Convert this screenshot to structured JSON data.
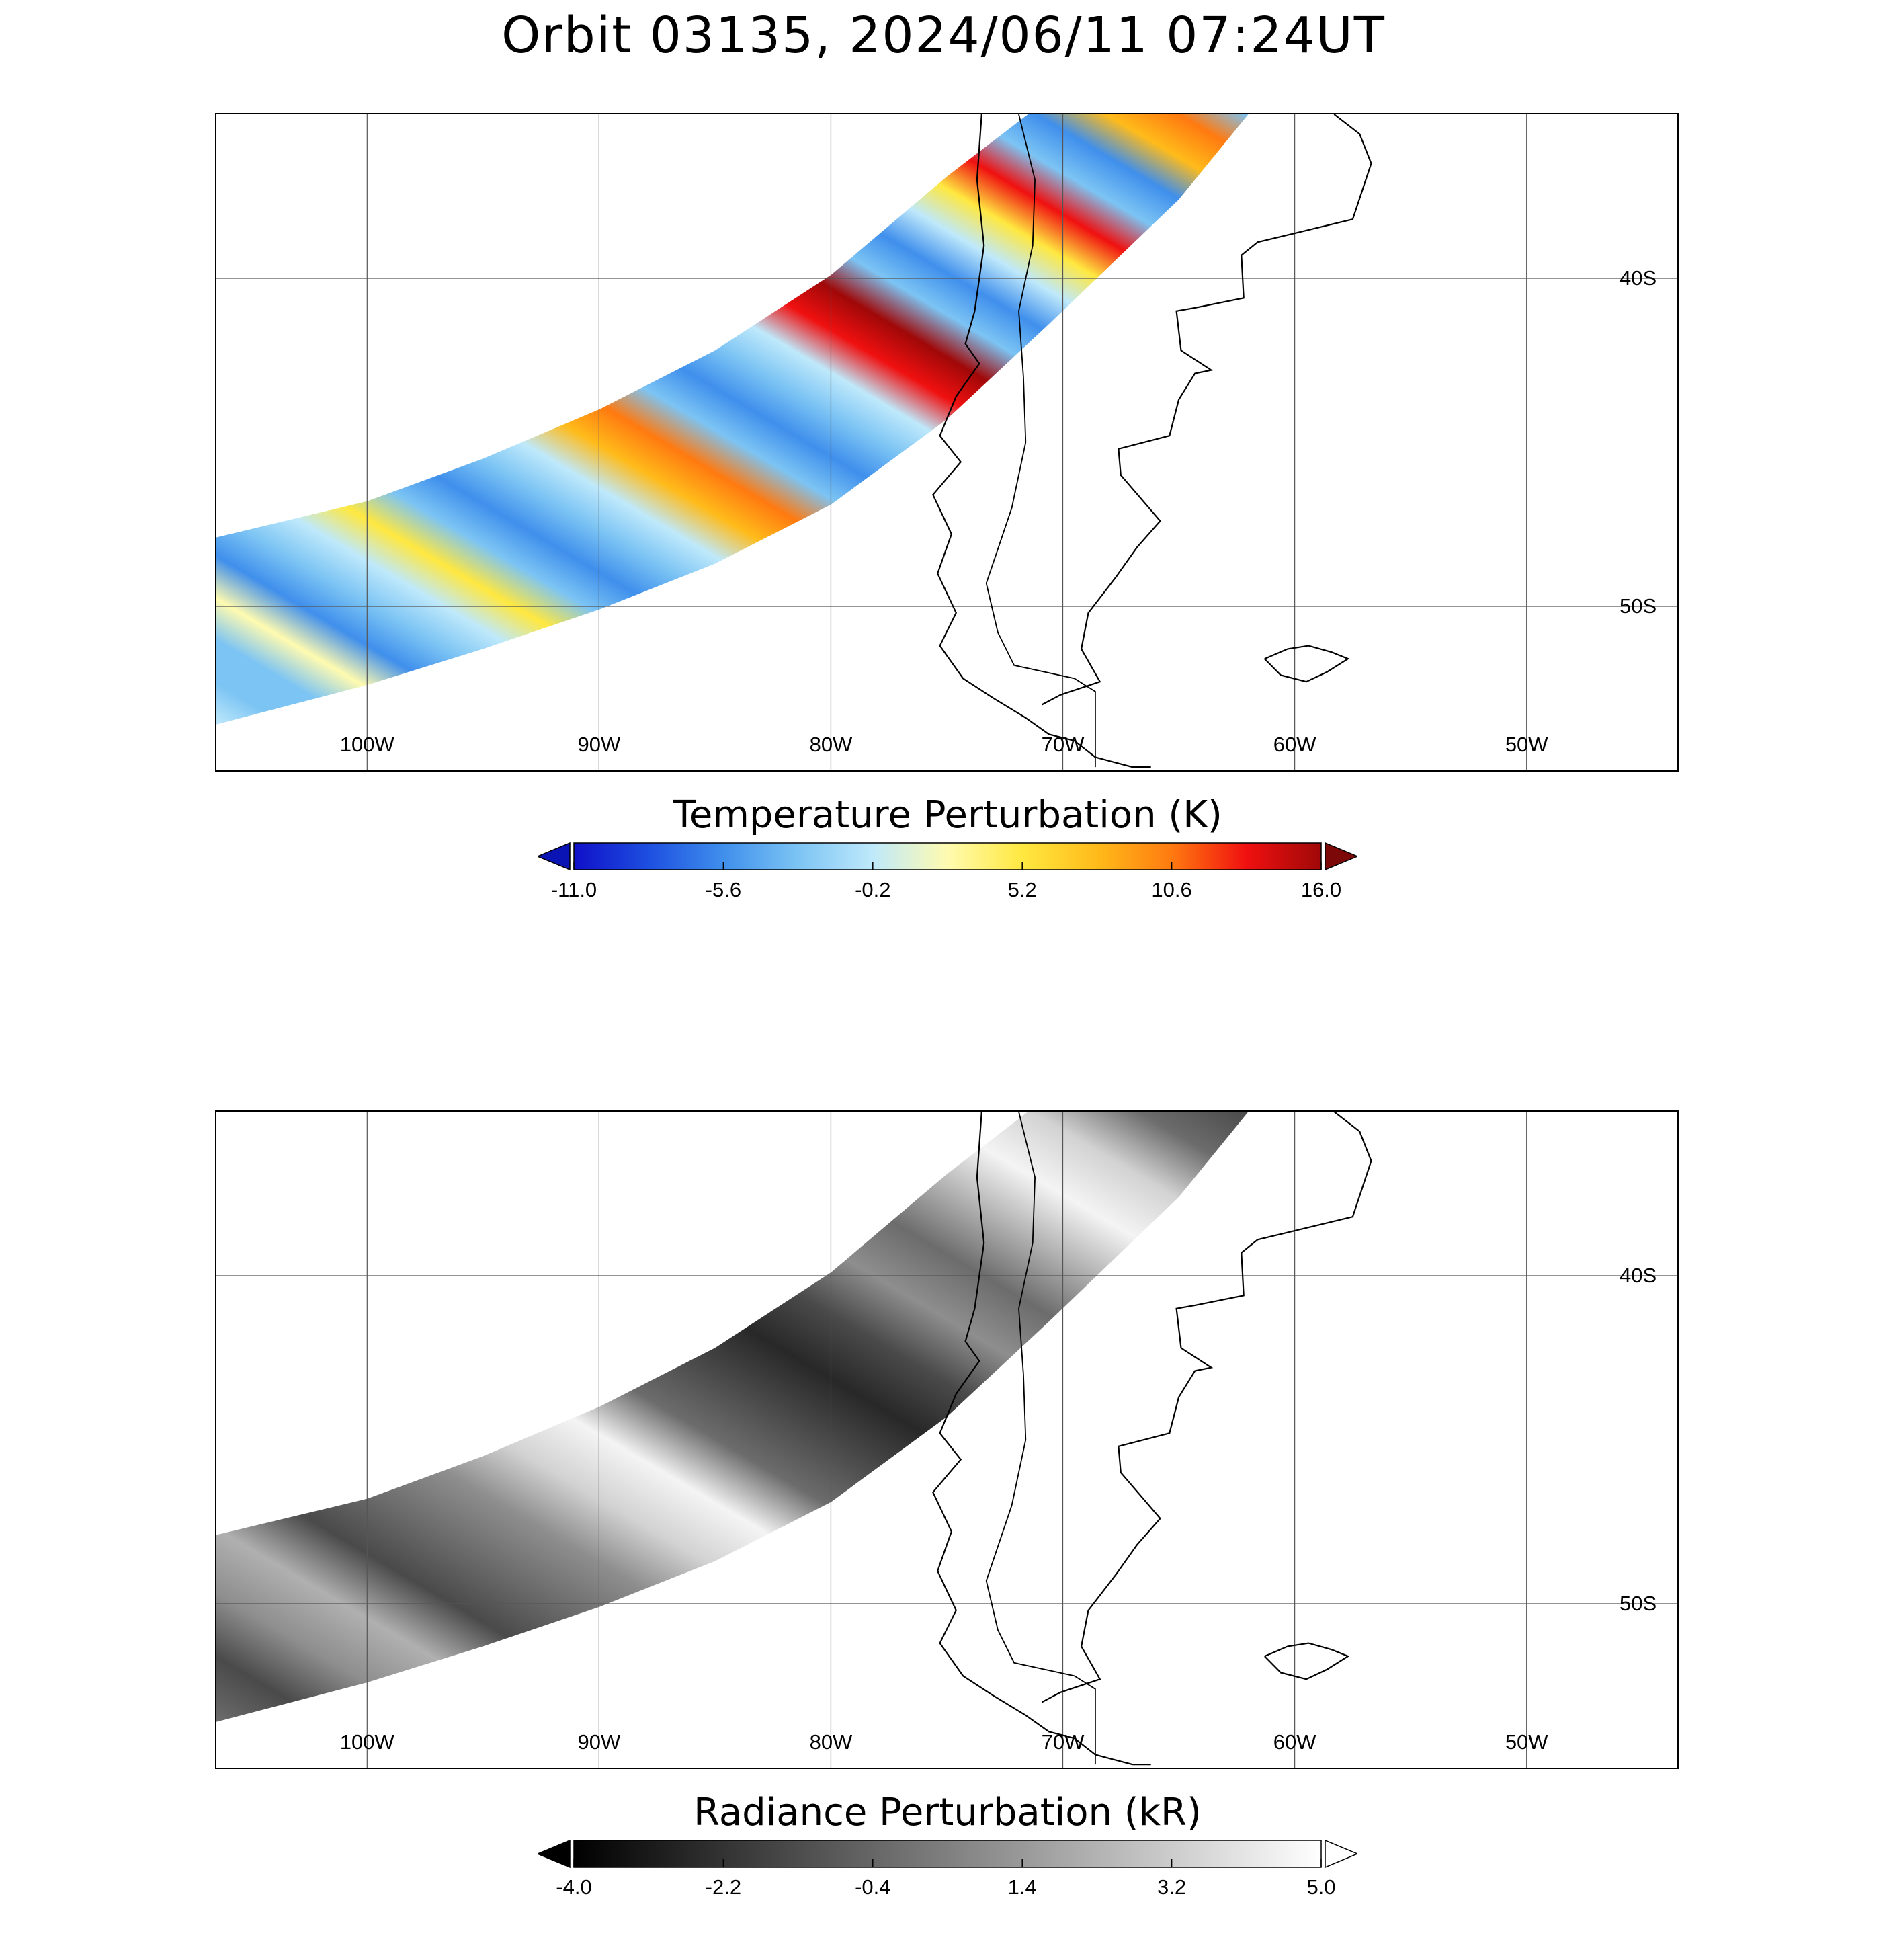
{
  "title": "Orbit 03135, 2024/06/11 07:24UT",
  "map": {
    "lon_range": [
      -106.5,
      -43.5
    ],
    "lat_range": [
      -55,
      -35
    ],
    "lon_grid": [
      -100,
      -90,
      -80,
      -70,
      -60,
      -50
    ],
    "lat_grid": [
      -40,
      -50
    ],
    "lon_labels": [
      "100W",
      "90W",
      "80W",
      "70W",
      "60W",
      "50W"
    ],
    "lat_labels": [
      "40S",
      "50S"
    ],
    "grid": true
  },
  "panels": [
    {
      "id": "temperature",
      "colorbar": {
        "label": "Temperature Perturbation (K)",
        "ticks": [
          "-11.0",
          "-5.6",
          "-0.2",
          "5.2",
          "10.6",
          "16.0"
        ],
        "range": [
          -11.0,
          16.0
        ],
        "colors": [
          "#1010c8",
          "#1d4fe0",
          "#3f8fec",
          "#7cc4f4",
          "#bfe9fb",
          "#fffbb0",
          "#ffe840",
          "#ffbb1a",
          "#ff7a10",
          "#f01010",
          "#a00808"
        ],
        "extend_low": "#0a14b4",
        "extend_high": "#7d0808"
      }
    },
    {
      "id": "radiance",
      "colorbar": {
        "label": "Radiance Perturbation (kR)",
        "ticks": [
          "-4.0",
          "-2.2",
          "-0.4",
          "1.4",
          "3.2",
          "5.0"
        ],
        "range": [
          -4.0,
          5.0
        ],
        "colors": [
          "#000000",
          "#ffffff"
        ],
        "extend_low": "#000000",
        "extend_high": "#ffffff"
      }
    }
  ]
}
